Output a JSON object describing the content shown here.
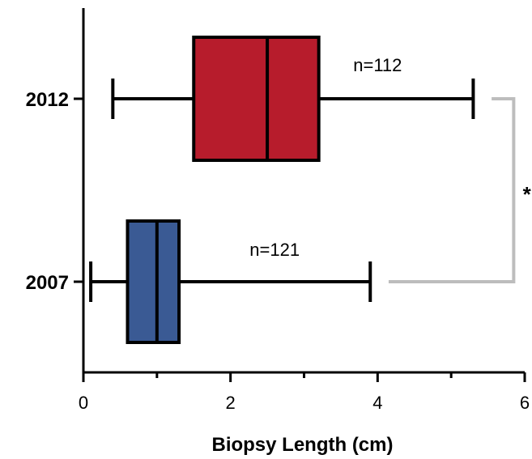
{
  "chart_data": {
    "type": "boxplot",
    "orientation": "horizontal",
    "xlabel": "Biopsy Length (cm)",
    "xlim": [
      0,
      6
    ],
    "xticks": [
      0,
      2,
      4,
      6
    ],
    "xtick_labels": [
      "0",
      "2",
      "4",
      "6"
    ],
    "categories": [
      "2012",
      "2007"
    ],
    "series": [
      {
        "category": "2012",
        "min": 0.4,
        "q1": 1.5,
        "median": 2.5,
        "q3": 3.2,
        "max": 5.3,
        "n_label": "n=112",
        "color": "#b71c2c"
      },
      {
        "category": "2007",
        "min": 0.1,
        "q1": 0.6,
        "median": 1.0,
        "q3": 1.3,
        "max": 3.9,
        "n_label": "n=121",
        "color": "#3a5a94"
      }
    ],
    "significance": {
      "label": "*",
      "color": "#bdbdbd"
    },
    "grid": false,
    "legend": "none"
  }
}
